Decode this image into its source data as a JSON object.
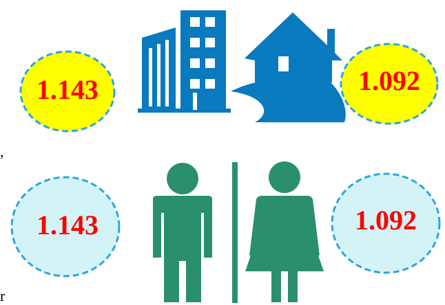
{
  "top": {
    "left_value": "1.143",
    "right_value": "1.092"
  },
  "bottom": {
    "left_value": "1.143",
    "right_value": "1.092"
  },
  "edge_texts": [
    ",",
    "r"
  ]
}
